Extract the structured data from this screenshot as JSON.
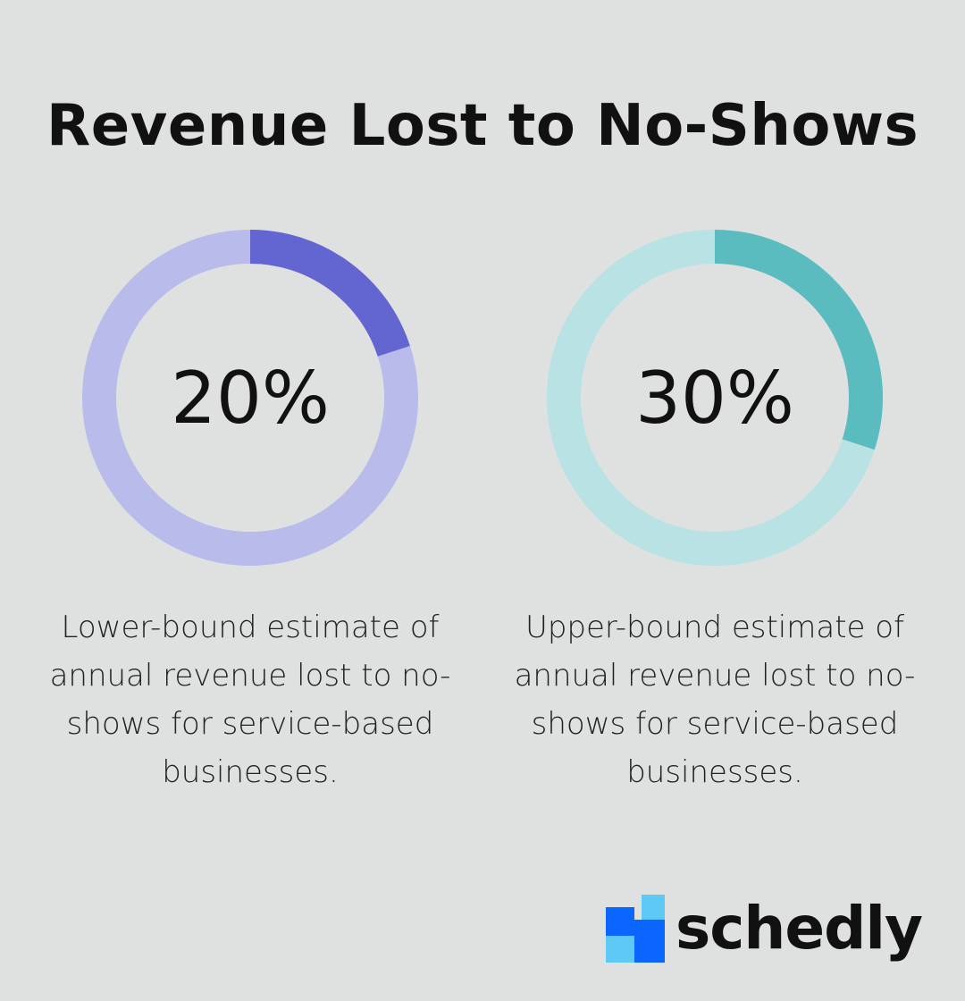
{
  "title": "Revenue Lost to No-Shows",
  "chart_data": [
    {
      "type": "pie",
      "variant": "donut",
      "value": 20,
      "unit": "%",
      "label": "20%",
      "description": "Lower-bound estimate of annual revenue lost to no-shows for service-based businesses.",
      "colors": {
        "fill": "#6366d0",
        "track": "#b9bbea"
      }
    },
    {
      "type": "pie",
      "variant": "donut",
      "value": 30,
      "unit": "%",
      "label": "30%",
      "description": "Upper-bound estimate of annual revenue lost to no-shows for service-based businesses.",
      "colors": {
        "fill": "#5bbcbf",
        "track": "#b8e2e3"
      }
    }
  ],
  "brand": {
    "name": "schedly",
    "logo_icon": "schedly-squares-logo",
    "colors": [
      "#0a66ff",
      "#5ec8f7"
    ]
  }
}
